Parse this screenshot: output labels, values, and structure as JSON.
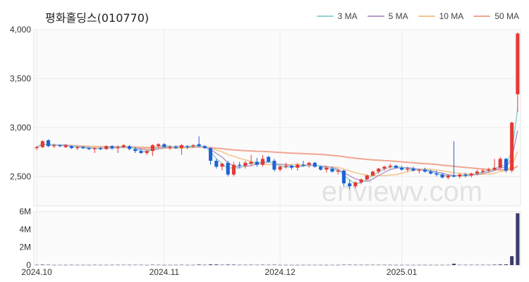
{
  "header": {
    "title": "평화홀딩스(010770)"
  },
  "colors": {
    "ma3": "#8fd4d0",
    "ma5": "#b69ac6",
    "ma10": "#f3c58b",
    "ma50": "#f2a592",
    "up": "#e53935",
    "down": "#1e63d6",
    "volume": "#3b3d6b",
    "grid": "#ececec"
  },
  "legend": [
    {
      "label": "3 MA",
      "color_key": "ma3"
    },
    {
      "label": "5 MA",
      "color_key": "ma5"
    },
    {
      "label": "10 MA",
      "color_key": "ma10"
    },
    {
      "label": "50 MA",
      "color_key": "ma50"
    }
  ],
  "watermark": "enviewv.com",
  "chart_data": {
    "type": "candlestick",
    "y_ticks": [
      {
        "v": 2500,
        "label": "2,500"
      },
      {
        "v": 3000,
        "label": "3,000"
      },
      {
        "v": 3500,
        "label": "3,500"
      },
      {
        "v": 4000,
        "label": "4,000"
      }
    ],
    "ylim": [
      2200,
      4000
    ],
    "x_ticks": [
      {
        "i": 0,
        "label": "2024.10"
      },
      {
        "i": 22,
        "label": "2024.11"
      },
      {
        "i": 43,
        "label": "2024.12"
      },
      {
        "i": 64,
        "label": "2025.01"
      }
    ],
    "volume_ticks": [
      {
        "v": 0,
        "label": "0"
      },
      {
        "v": 2,
        "label": "2M"
      },
      {
        "v": 4,
        "label": "4M"
      },
      {
        "v": 6,
        "label": "6M"
      }
    ],
    "volume_ylim": [
      0,
      6
    ],
    "candles": [
      [
        2790,
        2810,
        2770,
        2800,
        0.03
      ],
      [
        2800,
        2870,
        2790,
        2860,
        0.05
      ],
      [
        2870,
        2880,
        2800,
        2810,
        0.04
      ],
      [
        2810,
        2830,
        2790,
        2820,
        0.02
      ],
      [
        2820,
        2830,
        2800,
        2810,
        0.02
      ],
      [
        2800,
        2830,
        2790,
        2820,
        0.02
      ],
      [
        2810,
        2820,
        2780,
        2790,
        0.03
      ],
      [
        2790,
        2810,
        2770,
        2800,
        0.02
      ],
      [
        2800,
        2810,
        2780,
        2790,
        0.02
      ],
      [
        2790,
        2800,
        2770,
        2780,
        0.02
      ],
      [
        2780,
        2800,
        2740,
        2790,
        0.03
      ],
      [
        2790,
        2800,
        2770,
        2780,
        0.02
      ],
      [
        2780,
        2820,
        2770,
        2810,
        0.02
      ],
      [
        2810,
        2820,
        2770,
        2790,
        0.03
      ],
      [
        2790,
        2820,
        2740,
        2800,
        0.03
      ],
      [
        2800,
        2830,
        2790,
        2820,
        0.03
      ],
      [
        2810,
        2820,
        2770,
        2780,
        0.03
      ],
      [
        2780,
        2800,
        2740,
        2760,
        0.03
      ],
      [
        2760,
        2780,
        2730,
        2740,
        0.03
      ],
      [
        2740,
        2770,
        2720,
        2760,
        0.02
      ],
      [
        2760,
        2830,
        2710,
        2820,
        0.04
      ],
      [
        2810,
        2840,
        2790,
        2830,
        0.03
      ],
      [
        2830,
        2840,
        2800,
        2800,
        0.02
      ],
      [
        2800,
        2820,
        2770,
        2800,
        0.02
      ],
      [
        2800,
        2820,
        2780,
        2790,
        0.02
      ],
      [
        2790,
        2830,
        2720,
        2820,
        0.03
      ],
      [
        2810,
        2820,
        2780,
        2800,
        0.02
      ],
      [
        2810,
        2830,
        2790,
        2820,
        0.02
      ],
      [
        2830,
        2910,
        2800,
        2810,
        0.06
      ],
      [
        2810,
        2820,
        2780,
        2790,
        0.03
      ],
      [
        2790,
        2800,
        2620,
        2660,
        0.08
      ],
      [
        2660,
        2680,
        2580,
        2600,
        0.07
      ],
      [
        2600,
        2640,
        2560,
        2630,
        0.04
      ],
      [
        2640,
        2660,
        2500,
        2520,
        0.06
      ],
      [
        2520,
        2650,
        2500,
        2620,
        0.05
      ],
      [
        2620,
        2650,
        2590,
        2610,
        0.03
      ],
      [
        2610,
        2660,
        2580,
        2640,
        0.03
      ],
      [
        2630,
        2720,
        2610,
        2650,
        0.04
      ],
      [
        2650,
        2690,
        2600,
        2620,
        0.03
      ],
      [
        2620,
        2720,
        2600,
        2680,
        0.04
      ],
      [
        2700,
        2710,
        2640,
        2650,
        0.03
      ],
      [
        2660,
        2680,
        2550,
        2570,
        0.04
      ],
      [
        2570,
        2610,
        2550,
        2600,
        0.02
      ],
      [
        2600,
        2640,
        2580,
        2610,
        0.02
      ],
      [
        2610,
        2620,
        2570,
        2590,
        0.02
      ],
      [
        2590,
        2640,
        2560,
        2620,
        0.02
      ],
      [
        2620,
        2660,
        2600,
        2610,
        0.02
      ],
      [
        2620,
        2650,
        2590,
        2640,
        0.02
      ],
      [
        2640,
        2650,
        2590,
        2600,
        0.02
      ],
      [
        2600,
        2610,
        2560,
        2570,
        0.02
      ],
      [
        2570,
        2610,
        2540,
        2590,
        0.02
      ],
      [
        2580,
        2600,
        2540,
        2550,
        0.02
      ],
      [
        2550,
        2580,
        2520,
        2560,
        0.02
      ],
      [
        2560,
        2570,
        2400,
        2430,
        0.04
      ],
      [
        2430,
        2470,
        2370,
        2400,
        0.04
      ]
    ],
    "ma3": [],
    "ma5": [],
    "ma10": [],
    "ma50": []
  }
}
